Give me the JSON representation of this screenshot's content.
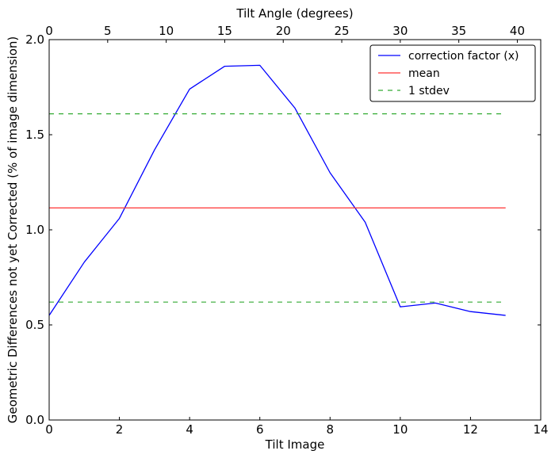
{
  "chart_data": {
    "type": "line",
    "xlabel": "Tilt Image",
    "ylabel": "Geometric Differences not yet Corrected (% of image dimension)",
    "top_xlabel": "Tilt Angle (degrees)",
    "xlim": [
      0,
      14
    ],
    "ylim": [
      0.0,
      2.0
    ],
    "top_xlim": [
      0,
      42
    ],
    "x_ticks": [
      "0",
      "2",
      "4",
      "6",
      "8",
      "10",
      "12",
      "14"
    ],
    "y_ticks": [
      "0.0",
      "0.5",
      "1.0",
      "1.5",
      "2.0"
    ],
    "top_x_ticks": [
      "0",
      "5",
      "10",
      "15",
      "20",
      "25",
      "30",
      "35",
      "40"
    ],
    "x_tick_values": [
      0,
      2,
      4,
      6,
      8,
      10,
      12,
      14
    ],
    "y_tick_values": [
      0.0,
      0.5,
      1.0,
      1.5,
      2.0
    ],
    "top_x_tick_values": [
      0,
      5,
      10,
      15,
      20,
      25,
      30,
      35,
      40
    ],
    "grid": false,
    "legend_position": "top-right",
    "series": [
      {
        "name": "correction factor (x)",
        "style": "solid",
        "color": "#0000ff",
        "x": [
          0,
          1,
          2,
          3,
          4,
          5,
          6,
          7,
          8,
          9,
          10,
          11,
          12,
          13
        ],
        "values": [
          0.55,
          0.83,
          1.06,
          1.42,
          1.74,
          1.86,
          1.865,
          1.64,
          1.3,
          1.04,
          0.595,
          0.615,
          0.57,
          0.55
        ]
      },
      {
        "name": "mean",
        "style": "solid",
        "color": "#ff3333",
        "x": [
          0,
          13
        ],
        "values": [
          1.115,
          1.115
        ]
      },
      {
        "name": "1 stdev",
        "style": "dashed",
        "color": "#33aa33",
        "x": [
          0,
          13
        ],
        "values": [
          1.61,
          1.61
        ]
      },
      {
        "name": "",
        "style": "dashed",
        "color": "#33aa33",
        "x": [
          0,
          13
        ],
        "values": [
          0.62,
          0.62
        ]
      }
    ],
    "legend": [
      {
        "label": "correction factor (x)",
        "color": "#0000ff",
        "style": "solid"
      },
      {
        "label": "mean",
        "color": "#ff3333",
        "style": "solid"
      },
      {
        "label": "1 stdev",
        "color": "#33aa33",
        "style": "dashed"
      }
    ]
  }
}
